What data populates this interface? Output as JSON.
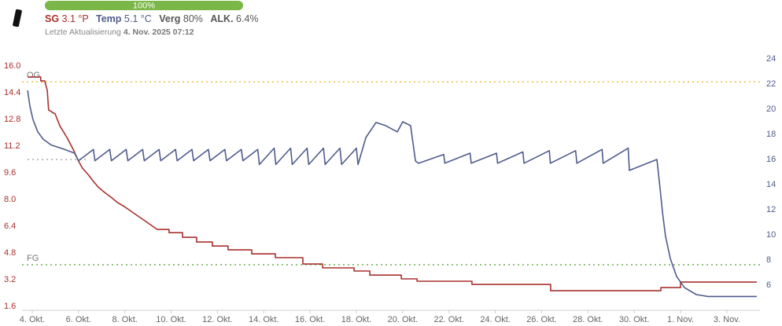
{
  "header": {
    "progress": {
      "value": 100,
      "label": "100%",
      "color": "#7ab648"
    },
    "status": [
      {
        "label": "SG",
        "value": "3.1 °P",
        "color": "#a8312e"
      },
      {
        "label": "Temp",
        "value": "5.1 °C",
        "color": "#4f5b8c"
      },
      {
        "label": "Verg",
        "value": "80%",
        "color": "#555555"
      },
      {
        "label": "ALK.",
        "value": "6.4%",
        "color": "#555555"
      }
    ],
    "update_label": "Letzte Aktualisierung",
    "update_time": "4. Nov. 2025 07:12"
  },
  "chart_data": {
    "type": "line",
    "xlim": [
      -0.44,
      31.43
    ],
    "xticks": [
      {
        "value": 0,
        "label": "4. Okt."
      },
      {
        "value": 2,
        "label": "6. Okt."
      },
      {
        "value": 4,
        "label": "8. Okt."
      },
      {
        "value": 6,
        "label": "10. Okt."
      },
      {
        "value": 8,
        "label": "12. Okt."
      },
      {
        "value": 10,
        "label": "14. Okt."
      },
      {
        "value": 12,
        "label": "16. Okt."
      },
      {
        "value": 14,
        "label": "18. Okt."
      },
      {
        "value": 16,
        "label": "20. Okt."
      },
      {
        "value": 18,
        "label": "22. Okt."
      },
      {
        "value": 20,
        "label": "24. Okt."
      },
      {
        "value": 22,
        "label": "26. Okt."
      },
      {
        "value": 24,
        "label": "28. Okt."
      },
      {
        "value": 26,
        "label": "30. Okt."
      },
      {
        "value": 28,
        "label": "1. Nov."
      },
      {
        "value": 30,
        "label": "3. Nov."
      }
    ],
    "ylim": [
      1.37,
      16.66
    ],
    "yticks": [
      1.6,
      3.2,
      4.8,
      6.4,
      {
        "value": 8,
        "label": "8.0"
      },
      9.6,
      11.2,
      12.8,
      14.4,
      {
        "value": 16,
        "label": "16.0"
      }
    ],
    "y2lim": [
      4.0,
      24.31
    ],
    "y2ticks": [
      6,
      8,
      10,
      12,
      14,
      16,
      18,
      20,
      22,
      24
    ],
    "reference_lines": [
      {
        "label": "OG",
        "value": 15.05,
        "color": "#e8c040"
      },
      {
        "label": "FG",
        "value": 4.1,
        "color": "#6ab04c"
      },
      {
        "value": 10.4,
        "color": "#aaaaaa",
        "x_range": [
          -0.2,
          2.34
        ]
      }
    ],
    "series": [
      {
        "name": "SG",
        "color": "#a8312e",
        "x": [
          -0.2,
          0.37,
          0.37,
          0.54,
          0.65,
          0.71,
          0.99,
          1.19,
          1.5,
          1.77,
          2.0,
          2.17,
          2.41,
          2.62,
          2.85,
          3.13,
          3.36,
          3.7,
          3.98,
          4.32,
          4.72,
          5.06,
          5.4,
          5.91,
          5.91,
          6.49,
          6.49,
          7.1,
          7.1,
          7.78,
          7.78,
          8.46,
          8.46,
          9.48,
          9.48,
          10.5,
          10.5,
          11.69,
          11.69,
          12.54,
          12.54,
          13.9,
          13.9,
          14.58,
          14.58,
          15.94,
          15.94,
          16.62,
          16.62,
          18.99,
          18.99,
          22.39,
          22.39,
          27.15,
          27.15,
          28.0,
          28.0,
          31.29
        ],
        "values": [
          15.34,
          15.34,
          15.11,
          15.11,
          14.54,
          13.36,
          13.13,
          12.42,
          11.72,
          11.01,
          10.31,
          9.88,
          9.51,
          9.13,
          8.75,
          8.42,
          8.19,
          7.81,
          7.58,
          7.25,
          6.87,
          6.54,
          6.21,
          6.21,
          6.02,
          6.02,
          5.74,
          5.74,
          5.46,
          5.46,
          5.22,
          5.22,
          4.99,
          4.99,
          4.75,
          4.75,
          4.52,
          4.52,
          4.14,
          4.14,
          3.91,
          3.91,
          3.72,
          3.72,
          3.48,
          3.48,
          3.25,
          3.25,
          3.11,
          3.11,
          2.92,
          2.92,
          2.54,
          2.54,
          2.73,
          2.73,
          3.06,
          3.06
        ]
      },
      {
        "name": "Temp",
        "color": "#4f5b8c",
        "axis": "y2",
        "x": [
          -0.2,
          -0.1,
          0.03,
          0.24,
          0.48,
          0.82,
          1.32,
          1.83,
          2.0,
          2.64,
          2.71,
          3.35,
          3.42,
          4.06,
          4.13,
          4.77,
          4.84,
          5.48,
          5.55,
          6.19,
          6.26,
          6.9,
          6.97,
          7.61,
          7.68,
          8.32,
          8.39,
          9.03,
          9.1,
          9.74,
          9.81,
          10.45,
          10.52,
          11.16,
          11.23,
          11.87,
          11.94,
          12.58,
          12.65,
          13.29,
          13.36,
          14.0,
          14.07,
          14.41,
          14.85,
          15.26,
          15.77,
          16.0,
          16.34,
          16.55,
          16.68,
          17.77,
          17.82,
          18.91,
          18.96,
          20.05,
          20.1,
          21.19,
          21.24,
          22.33,
          22.38,
          23.47,
          23.52,
          24.61,
          24.66,
          25.74,
          25.79,
          26.98,
          27.08,
          27.22,
          27.35,
          27.56,
          27.83,
          28.17,
          28.68,
          29.19,
          31.29
        ],
        "values": [
          21.5,
          20.25,
          19.2,
          18.2,
          17.6,
          17.15,
          16.85,
          16.5,
          15.9,
          16.8,
          15.9,
          16.8,
          15.9,
          16.8,
          15.9,
          16.8,
          15.9,
          16.8,
          15.9,
          16.8,
          15.9,
          16.8,
          15.9,
          16.8,
          15.9,
          16.8,
          15.9,
          16.8,
          15.9,
          16.8,
          15.6,
          16.9,
          15.6,
          16.9,
          15.6,
          16.9,
          15.6,
          16.9,
          15.6,
          16.9,
          15.6,
          16.9,
          15.6,
          17.75,
          18.94,
          18.69,
          18.19,
          19.0,
          18.69,
          15.88,
          15.69,
          16.4,
          15.7,
          16.5,
          15.7,
          16.5,
          15.7,
          16.6,
          15.7,
          16.7,
          15.7,
          16.7,
          15.7,
          16.8,
          15.7,
          16.9,
          15.13,
          16.0,
          14.3,
          11.8,
          9.9,
          8.1,
          6.7,
          5.8,
          5.25,
          5.1,
          5.1
        ]
      }
    ]
  }
}
